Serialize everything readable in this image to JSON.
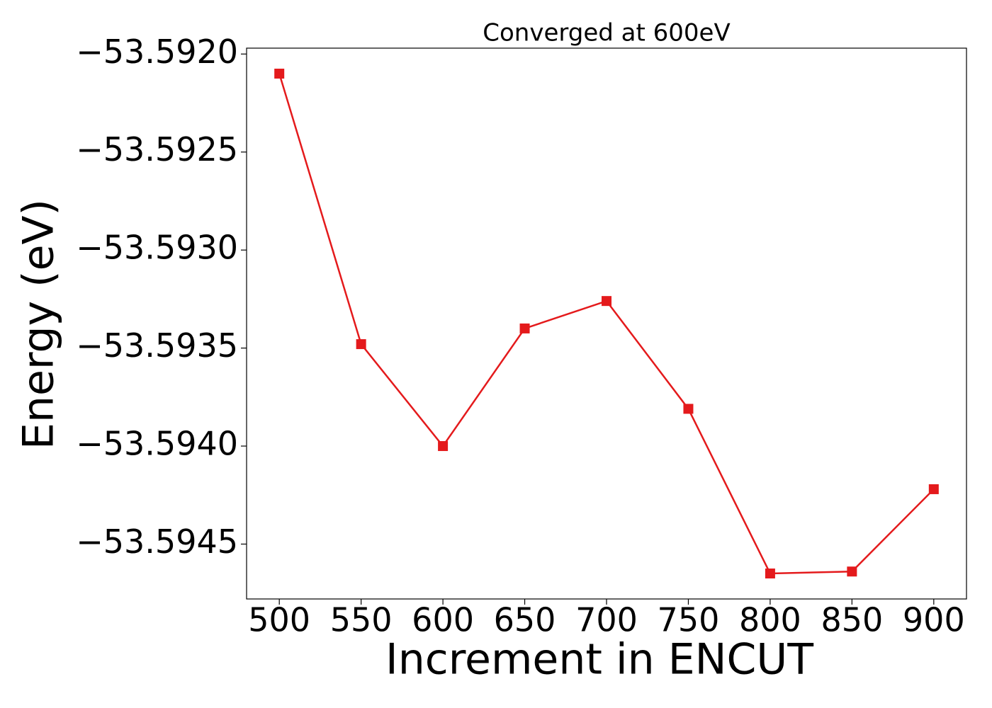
{
  "chart_data": {
    "type": "line",
    "title": "Converged at 600eV",
    "x_label": "Increment in ENCUT",
    "y_label": "Energy (eV)",
    "x": [
      500,
      550,
      600,
      650,
      700,
      750,
      800,
      850,
      900
    ],
    "series": [
      {
        "color": "#e41a1c",
        "marker": "square",
        "values": [
          -53.5921,
          -53.59348,
          -53.594,
          -53.5934,
          -53.59326,
          -53.59381,
          -53.59465,
          -53.59464,
          -53.59422
        ]
      }
    ],
    "xlim": [
      480,
      920
    ],
    "xticks": [
      500,
      550,
      600,
      650,
      700,
      750,
      800,
      850,
      900
    ],
    "ylim": [
      -53.59478,
      -53.59197
    ],
    "yticks": [
      {
        "value": -53.592,
        "label": "−53.5920"
      },
      {
        "value": -53.5925,
        "label": "−53.5925"
      },
      {
        "value": -53.593,
        "label": "−53.5930"
      },
      {
        "value": -53.5935,
        "label": "−53.5935"
      },
      {
        "value": -53.594,
        "label": "−53.5940"
      },
      {
        "value": -53.5945,
        "label": "−53.5945"
      }
    ],
    "grid": false
  }
}
